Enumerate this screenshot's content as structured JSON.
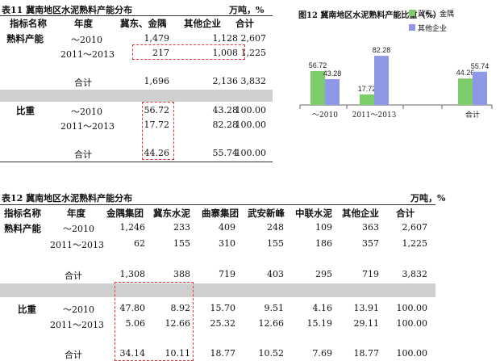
{
  "table11": {
    "title": "表11  冀南地区水泥熟料产能分布",
    "unit": "万吨，%",
    "headers": [
      "指标名称",
      "年度",
      "冀东、金隅",
      "其他企业",
      "合计"
    ],
    "row_group1": "熟料产能",
    "row_group2": "比重",
    "capacity": [
      {
        "year": "～2010",
        "a": "1,479",
        "b": "1,128",
        "t": "2,607"
      },
      {
        "year": "2011～2013",
        "a": "217",
        "b": "1,008",
        "t": "1,225"
      },
      {
        "year": "合计",
        "a": "1,696",
        "b": "2,136",
        "t": "3,832"
      }
    ],
    "share": [
      {
        "year": "～2010",
        "a": "56.72",
        "b": "43.28",
        "t": "100.00"
      },
      {
        "year": "2011～2013",
        "a": "17.72",
        "b": "82.28",
        "t": "100.00"
      },
      {
        "year": "合计",
        "a": "44.26",
        "b": "55.74",
        "t": "100.00"
      }
    ]
  },
  "chart12": {
    "title": "图12  冀南地区水泥熟料产能比重（%）",
    "legend": [
      {
        "name": "冀东、金隅",
        "color": "#7dcc6a"
      },
      {
        "name": "其他企业",
        "color": "#8f98e6"
      }
    ]
  },
  "chart_data": {
    "type": "bar",
    "title": "图12  冀南地区水泥熟料产能比重（%）",
    "categories": [
      "～2010",
      "2011～2013",
      "合计"
    ],
    "series": [
      {
        "name": "冀东、金隅",
        "values": [
          56.72,
          17.72,
          44.26
        ]
      },
      {
        "name": "其他企业",
        "values": [
          43.28,
          82.28,
          55.74
        ]
      }
    ],
    "ylim": [
      0,
      100
    ],
    "grid": false,
    "legend_position": "top-right"
  },
  "table12": {
    "title": "表12  冀南地区水泥熟料产能分布",
    "unit": "万吨，%",
    "headers": [
      "指标名称",
      "年度",
      "金隅集团",
      "冀东水泥",
      "曲寨集团",
      "武安新峰",
      "中联水泥",
      "其他企业",
      "合计"
    ],
    "row_group1": "熟料产能",
    "row_group2": "比重",
    "capacity": [
      {
        "year": "～2010",
        "v": [
          "1,246",
          "233",
          "409",
          "248",
          "109",
          "363",
          "2,607"
        ]
      },
      {
        "year": "2011～2013",
        "v": [
          "62",
          "155",
          "310",
          "155",
          "186",
          "357",
          "1,225"
        ]
      },
      {
        "year": "合计",
        "v": [
          "1,308",
          "388",
          "719",
          "403",
          "295",
          "719",
          "3,832"
        ]
      }
    ],
    "share": [
      {
        "year": "～2010",
        "v": [
          "47.80",
          "8.92",
          "15.70",
          "9.51",
          "4.16",
          "13.91",
          "100.00"
        ]
      },
      {
        "year": "2011～2013",
        "v": [
          "5.06",
          "12.66",
          "25.32",
          "12.66",
          "15.19",
          "29.11",
          "100.00"
        ]
      },
      {
        "year": "合计",
        "v": [
          "34.14",
          "10.11",
          "18.77",
          "10.52",
          "7.69",
          "18.77",
          "100.00"
        ]
      }
    ]
  }
}
